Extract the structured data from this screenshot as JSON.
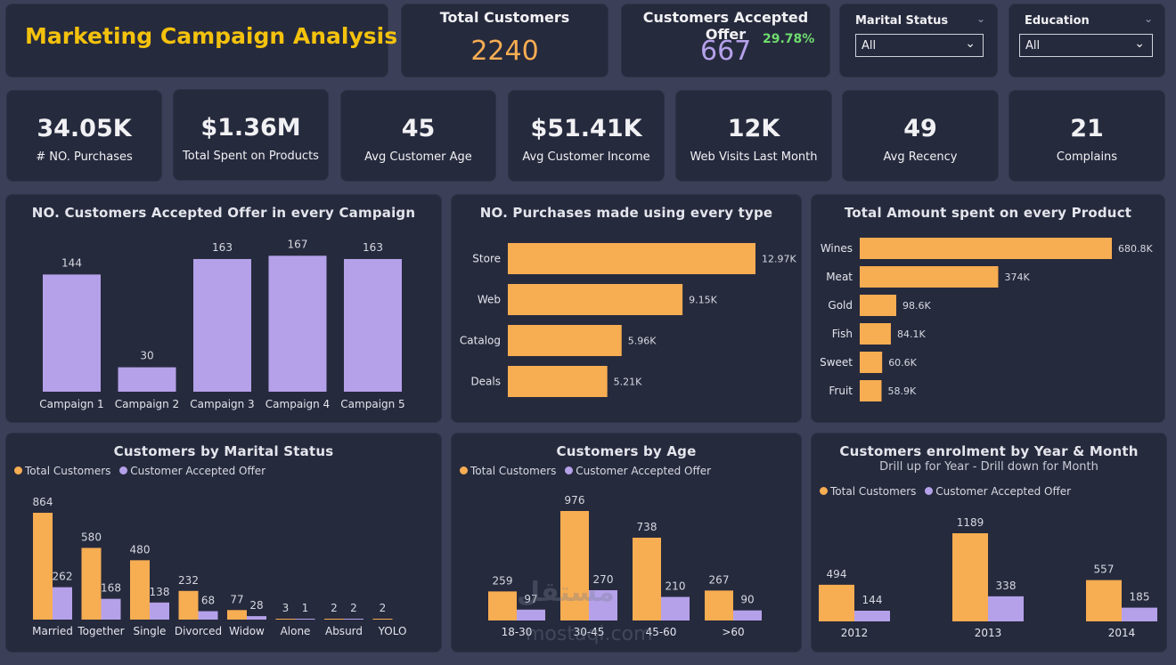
{
  "header": {
    "title": "Marketing Campaign Analysis"
  },
  "kpi_total_customers": {
    "label": "Total Customers",
    "value": "2240"
  },
  "kpi_accepted": {
    "label": "Customers Accepted Offer",
    "value": "667",
    "percent": "29.78%"
  },
  "slicer_marital": {
    "title": "Marital Status",
    "value": "All"
  },
  "slicer_education": {
    "title": "Education",
    "value": "All"
  },
  "stats": [
    {
      "value": "34.05K",
      "label": "# NO. Purchases"
    },
    {
      "value": "$1.36M",
      "label": "Total Spent on Products"
    },
    {
      "value": "45",
      "label": "Avg Customer Age"
    },
    {
      "value": "$51.41K",
      "label": "Avg Customer Income"
    },
    {
      "value": "12K",
      "label": "Web Visits Last Month"
    },
    {
      "value": "49",
      "label": "Avg Recency"
    },
    {
      "value": "21",
      "label": "Complains"
    }
  ],
  "colors": {
    "orange": "#f7ad52",
    "purple": "#b5a1ea",
    "title_yellow": "#f4c20d",
    "accepted_value": "#b5a1ea",
    "total_value": "#f7ad52",
    "percent_green": "#6edc6e"
  },
  "chart_campaign": {
    "title": "NO. Customers Accepted Offer in every Campaign",
    "chart_data": {
      "type": "bar",
      "categories": [
        "Campaign 1",
        "Campaign 2",
        "Campaign 3",
        "Campaign 4",
        "Campaign 5"
      ],
      "values": [
        144,
        30,
        163,
        167,
        163
      ],
      "ylim": [
        0,
        175
      ]
    }
  },
  "chart_purchase_type": {
    "title": "NO. Purchases made using every type",
    "chart_data": {
      "type": "bar",
      "orientation": "horizontal",
      "categories": [
        "Store",
        "Web",
        "Catalog",
        "Deals"
      ],
      "values": [
        12970,
        9150,
        5960,
        5210
      ],
      "labels": [
        "12.97K",
        "9.15K",
        "5.96K",
        "5.21K"
      ]
    }
  },
  "chart_product": {
    "title": "Total Amount spent on every Product",
    "chart_data": {
      "type": "bar",
      "orientation": "horizontal",
      "categories": [
        "Wines",
        "Meat",
        "Gold",
        "Fish",
        "Sweet",
        "Fruit"
      ],
      "values": [
        680800,
        374000,
        98600,
        84100,
        60600,
        58900
      ],
      "labels": [
        "680.8K",
        "374K",
        "98.6K",
        "84.1K",
        "60.6K",
        "58.9K"
      ]
    }
  },
  "chart_marital": {
    "title": "Customers by Marital Status",
    "legend": [
      "Total Customers",
      "Customer Accepted Offer"
    ],
    "chart_data": {
      "type": "bar",
      "categories": [
        "Married",
        "Together",
        "Single",
        "Divorced",
        "Widow",
        "Alone",
        "Absurd",
        "YOLO"
      ],
      "series": [
        {
          "name": "Total Customers",
          "values": [
            864,
            580,
            480,
            232,
            77,
            3,
            2,
            2
          ]
        },
        {
          "name": "Customer Accepted Offer",
          "values": [
            262,
            168,
            138,
            68,
            28,
            1,
            2,
            null
          ]
        }
      ]
    }
  },
  "chart_age": {
    "title": "Customers by Age",
    "legend": [
      "Total Customers",
      "Customer Accepted Offer"
    ],
    "chart_data": {
      "type": "bar",
      "categories": [
        "18-30",
        "30-45",
        "45-60",
        ">60"
      ],
      "series": [
        {
          "name": "Total Customers",
          "values": [
            259,
            976,
            738,
            267
          ]
        },
        {
          "name": "Customer Accepted Offer",
          "values": [
            97,
            270,
            210,
            90
          ]
        }
      ]
    }
  },
  "chart_enrolment": {
    "title": "Customers enrolment by Year & Month",
    "subtitle": "Drill up for Year - Drill down for Month",
    "legend": [
      "Total Customers",
      "Customer Accepted Offer"
    ],
    "chart_data": {
      "type": "bar",
      "categories": [
        "2012",
        "2013",
        "2014"
      ],
      "series": [
        {
          "name": "Total Customers",
          "values": [
            494,
            1189,
            557
          ]
        },
        {
          "name": "Customer Accepted Offer",
          "values": [
            144,
            338,
            185
          ]
        }
      ]
    }
  },
  "watermark": {
    "line1": "مستقل",
    "line2": "mostaqi.com"
  }
}
